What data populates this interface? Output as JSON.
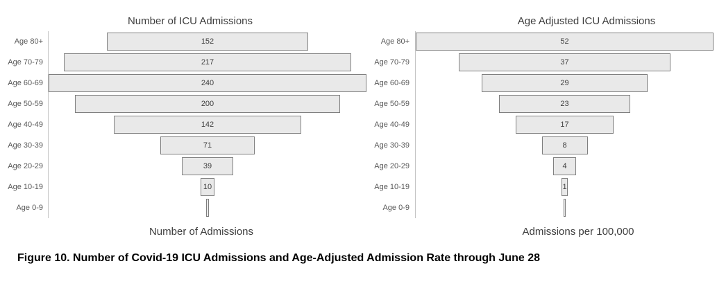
{
  "caption": "Figure 10. Number of Covid-19 ICU Admissions and Age-Adjusted Admission Rate through June 28",
  "colors": {
    "page_bg": "#ffffff",
    "bar_fill": "#e9e9e9",
    "bar_border": "#7f7f7f",
    "axis_line": "#c4c4c4",
    "label_text": "#595959",
    "value_text": "#404040",
    "title_text": "#3d3d3d",
    "caption_text": "#000000"
  },
  "chart_data": [
    {
      "type": "bar",
      "orientation": "horizontal-centered-funnel",
      "title": "Number of ICU Admissions",
      "xlabel": "Number of Admissions",
      "ylabel": "",
      "legend": "none",
      "grid": "off",
      "categories": [
        "Age 80+",
        "Age 70-79",
        "Age 60-69",
        "Age 50-59",
        "Age 40-49",
        "Age 30-39",
        "Age 20-29",
        "Age 10-19",
        "Age 0-9"
      ],
      "values": [
        152,
        217,
        240,
        200,
        142,
        71,
        39,
        10,
        2
      ],
      "value_labels": [
        "152",
        "217",
        "240",
        "200",
        "142",
        "71",
        "39",
        "10",
        ""
      ],
      "xmax": 240,
      "note_unlabeled": "Age 0-9 bar is drawn but has no printed value; 2 is a pixel estimate"
    },
    {
      "type": "bar",
      "orientation": "horizontal-centered-funnel",
      "title": "Age Adjusted ICU Admissions",
      "xlabel": "Admissions per 100,000",
      "ylabel": "",
      "legend": "none",
      "grid": "off",
      "categories": [
        "Age 80+",
        "Age 70-79",
        "Age 60-69",
        "Age 50-59",
        "Age 40-49",
        "Age 30-39",
        "Age 20-29",
        "Age 10-19",
        "Age 0-9"
      ],
      "values": [
        52,
        37,
        29,
        23,
        17,
        8,
        4,
        1,
        0.25
      ],
      "value_labels": [
        "52",
        "37",
        "29",
        "23",
        "17",
        "8",
        "4",
        "1",
        ""
      ],
      "xmax": 52,
      "note_unlabeled": "Age 0-9 bar is drawn but has no printed value; 0.25 is a pixel estimate"
    }
  ]
}
